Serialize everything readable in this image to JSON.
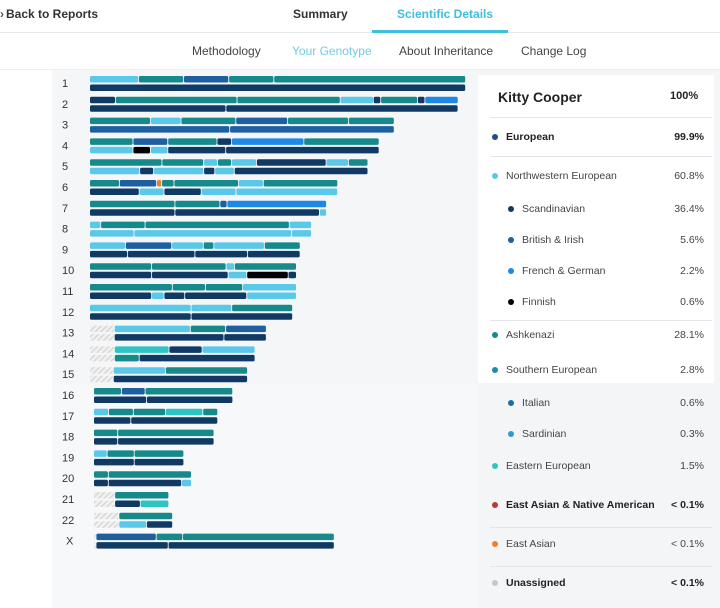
{
  "nav": {
    "back_label": "Back to Reports",
    "tabs": [
      {
        "label": "Summary",
        "active": false
      },
      {
        "label": "Scientific Details",
        "active": true
      }
    ],
    "subtabs": [
      {
        "label": "Methodology",
        "active": false
      },
      {
        "label": "Your Genotype",
        "active": true
      },
      {
        "label": "About Inheritance",
        "active": false
      },
      {
        "label": "Change Log",
        "active": false
      }
    ]
  },
  "colors": {
    "accent": "#3fc0de",
    "european": "#1a4f87",
    "northwestern": "#5ac8e8",
    "scandinavian": "#103a63",
    "british_irish": "#1e5fa0",
    "french_german": "#1e88e5",
    "finnish": "#000000",
    "ashkenazi": "#168a8a",
    "southern": "#1d8aa8",
    "italian": "#1a6fa6",
    "sardinian": "#2d9bd0",
    "eastern": "#2ec4c4",
    "east_asian_native": "#c0392b",
    "east_asian": "#f07f2c",
    "unassigned": "#c8c8c8"
  },
  "profile": {
    "name": "Kitty Cooper",
    "total": "100%"
  },
  "ancestry": [
    {
      "label": "European",
      "pct": "99.9%",
      "level": 0,
      "bold": true,
      "color": "european"
    },
    {
      "label": "Northwestern European",
      "pct": "60.8%",
      "level": 0,
      "bold": false,
      "color": "northwestern"
    },
    {
      "label": "Scandinavian",
      "pct": "36.4%",
      "level": 1,
      "bold": false,
      "color": "scandinavian"
    },
    {
      "label": "British & Irish",
      "pct": "5.6%",
      "level": 1,
      "bold": false,
      "color": "british_irish"
    },
    {
      "label": "French & German",
      "pct": "2.2%",
      "level": 1,
      "bold": false,
      "color": "french_german"
    },
    {
      "label": "Finnish",
      "pct": "0.6%",
      "level": 1,
      "bold": false,
      "color": "finnish"
    },
    {
      "label": "Ashkenazi",
      "pct": "28.1%",
      "level": 0,
      "bold": false,
      "color": "ashkenazi"
    },
    {
      "label": "Southern European",
      "pct": "2.8%",
      "level": 0,
      "bold": false,
      "color": "southern"
    },
    {
      "label": "Italian",
      "pct": "0.6%",
      "level": 1,
      "bold": false,
      "color": "italian"
    },
    {
      "label": "Sardinian",
      "pct": "0.3%",
      "level": 1,
      "bold": false,
      "color": "sardinian"
    },
    {
      "label": "Eastern European",
      "pct": "1.5%",
      "level": 0,
      "bold": false,
      "color": "eastern"
    },
    {
      "label": "East Asian & Native American",
      "pct": "< 0.1%",
      "level": 0,
      "bold": true,
      "color": "east_asian_native"
    },
    {
      "label": "East Asian",
      "pct": "< 0.1%",
      "level": 0,
      "bold": false,
      "color": "east_asian"
    },
    {
      "label": "Unassigned",
      "pct": "< 0.1%",
      "level": 0,
      "bold": true,
      "color": "unassigned"
    }
  ],
  "chromosomes": [
    {
      "label": "1",
      "length": 1.0,
      "top": [
        [
          "northwestern",
          0.13
        ],
        [
          "ashkenazi",
          0.12
        ],
        [
          "british_irish",
          0.12
        ],
        [
          "ashkenazi",
          0.12
        ],
        [
          "ashkenazi",
          0.51
        ]
      ],
      "bottom": [
        [
          "scandinavian",
          1.0
        ]
      ]
    },
    {
      "label": "2",
      "length": 0.98,
      "top": [
        [
          "scandinavian",
          0.07
        ],
        [
          "ashkenazi",
          0.33
        ],
        [
          "ashkenazi",
          0.28
        ],
        [
          "northwestern",
          0.09
        ],
        [
          "scandinavian",
          0.02
        ],
        [
          "ashkenazi",
          0.1
        ],
        [
          "scandinavian",
          0.02
        ],
        [
          "french_german",
          0.09
        ]
      ],
      "bottom": [
        [
          "scandinavian",
          0.37
        ],
        [
          "scandinavian",
          0.63
        ]
      ]
    },
    {
      "label": "3",
      "length": 0.81,
      "top": [
        [
          "ashkenazi",
          0.2
        ],
        [
          "northwestern",
          0.1
        ],
        [
          "ashkenazi",
          0.18
        ],
        [
          "british_irish",
          0.17
        ],
        [
          "ashkenazi",
          0.2
        ],
        [
          "ashkenazi",
          0.15
        ]
      ],
      "bottom": [
        [
          "british_irish",
          0.46
        ],
        [
          "british_irish",
          0.54
        ]
      ]
    },
    {
      "label": "4",
      "length": 0.77,
      "top": [
        [
          "ashkenazi",
          0.15
        ],
        [
          "british_irish",
          0.12
        ],
        [
          "ashkenazi",
          0.17
        ],
        [
          "scandinavian",
          0.05
        ],
        [
          "french_german",
          0.25
        ],
        [
          "ashkenazi",
          0.26
        ]
      ],
      "bottom": [
        [
          "northwestern",
          0.15
        ],
        [
          "finnish",
          0.06
        ],
        [
          "northwestern",
          0.06
        ],
        [
          "scandinavian",
          0.2
        ],
        [
          "scandinavian",
          0.53
        ]
      ]
    },
    {
      "label": "5",
      "length": 0.74,
      "top": [
        [
          "ashkenazi",
          0.26
        ],
        [
          "ashkenazi",
          0.15
        ],
        [
          "northwestern",
          0.05
        ],
        [
          "ashkenazi",
          0.05
        ],
        [
          "northwestern",
          0.09
        ],
        [
          "scandinavian",
          0.25
        ],
        [
          "northwestern",
          0.08
        ],
        [
          "ashkenazi",
          0.07
        ]
      ],
      "bottom": [
        [
          "northwestern",
          0.18
        ],
        [
          "scandinavian",
          0.05
        ],
        [
          "northwestern",
          0.18
        ],
        [
          "scandinavian",
          0.04
        ],
        [
          "northwestern",
          0.07
        ],
        [
          "scandinavian",
          0.48
        ]
      ]
    },
    {
      "label": "6",
      "length": 0.66,
      "top": [
        [
          "ashkenazi",
          0.12
        ],
        [
          "british_irish",
          0.15
        ],
        [
          "east_asian",
          0.02
        ],
        [
          "ashkenazi",
          0.05
        ],
        [
          "ashkenazi",
          0.26
        ],
        [
          "northwestern",
          0.1
        ],
        [
          "ashkenazi",
          0.3
        ]
      ],
      "bottom": [
        [
          "scandinavian",
          0.2
        ],
        [
          "northwestern",
          0.1
        ],
        [
          "scandinavian",
          0.15
        ],
        [
          "northwestern",
          0.14
        ],
        [
          "northwestern",
          0.41
        ]
      ]
    },
    {
      "label": "7",
      "length": 0.63,
      "top": [
        [
          "ashkenazi",
          0.36
        ],
        [
          "ashkenazi",
          0.19
        ],
        [
          "british_irish",
          0.03
        ],
        [
          "french_german",
          0.42
        ]
      ],
      "bottom": [
        [
          "scandinavian",
          0.36
        ],
        [
          "scandinavian",
          0.61
        ],
        [
          "northwestern",
          0.03
        ]
      ]
    },
    {
      "label": "8",
      "length": 0.59,
      "top": [
        [
          "northwestern",
          0.05
        ],
        [
          "ashkenazi",
          0.2
        ],
        [
          "ashkenazi",
          0.65
        ],
        [
          "northwestern",
          0.1
        ]
      ],
      "bottom": [
        [
          "northwestern",
          0.2
        ],
        [
          "northwestern",
          0.71
        ],
        [
          "northwestern",
          0.09
        ]
      ]
    },
    {
      "label": "9",
      "length": 0.56,
      "top": [
        [
          "northwestern",
          0.17
        ],
        [
          "british_irish",
          0.22
        ],
        [
          "northwestern",
          0.15
        ],
        [
          "ashkenazi",
          0.05
        ],
        [
          "northwestern",
          0.24
        ],
        [
          "ashkenazi",
          0.17
        ]
      ],
      "bottom": [
        [
          "scandinavian",
          0.18
        ],
        [
          "scandinavian",
          0.32
        ],
        [
          "scandinavian",
          0.25
        ],
        [
          "scandinavian",
          0.25
        ]
      ]
    },
    {
      "label": "10",
      "length": 0.55,
      "top": [
        [
          "ashkenazi",
          0.3
        ],
        [
          "ashkenazi",
          0.36
        ],
        [
          "northwestern",
          0.04
        ],
        [
          "ashkenazi",
          0.3
        ]
      ],
      "bottom": [
        [
          "scandinavian",
          0.3
        ],
        [
          "scandinavian",
          0.37
        ],
        [
          "northwestern",
          0.09
        ],
        [
          "finnish",
          0.2
        ],
        [
          "scandinavian",
          0.04
        ]
      ]
    },
    {
      "label": "11",
      "length": 0.55,
      "top": [
        [
          "ashkenazi",
          0.4
        ],
        [
          "ashkenazi",
          0.16
        ],
        [
          "ashkenazi",
          0.18
        ],
        [
          "northwestern",
          0.26
        ]
      ],
      "bottom": [
        [
          "scandinavian",
          0.3
        ],
        [
          "northwestern",
          0.06
        ],
        [
          "scandinavian",
          0.1
        ],
        [
          "scandinavian",
          0.3
        ],
        [
          "northwestern",
          0.24
        ]
      ]
    },
    {
      "label": "12",
      "length": 0.54,
      "top": [
        [
          "northwestern",
          0.5
        ],
        [
          "northwestern",
          0.2
        ],
        [
          "ashkenazi",
          0.3
        ]
      ],
      "bottom": [
        [
          "scandinavian",
          0.5
        ],
        [
          "scandinavian",
          0.5
        ]
      ]
    },
    {
      "label": "13",
      "length": 0.47,
      "top": [
        [
          "unassigned",
          0.14
        ],
        [
          "northwestern",
          0.43
        ],
        [
          "ashkenazi",
          0.2
        ],
        [
          "british_irish",
          0.23
        ]
      ],
      "bottom": [
        [
          "unassigned",
          0.14
        ],
        [
          "scandinavian",
          0.62
        ],
        [
          "scandinavian",
          0.24
        ]
      ]
    },
    {
      "label": "14",
      "length": 0.44,
      "top": [
        [
          "unassigned",
          0.15
        ],
        [
          "eastern",
          0.33
        ],
        [
          "scandinavian",
          0.2
        ],
        [
          "northwestern",
          0.32
        ]
      ],
      "bottom": [
        [
          "unassigned",
          0.15
        ],
        [
          "ashkenazi",
          0.15
        ],
        [
          "scandinavian",
          0.7
        ]
      ]
    },
    {
      "label": "15",
      "length": 0.42,
      "top": [
        [
          "unassigned",
          0.15
        ],
        [
          "northwestern",
          0.33
        ],
        [
          "ashkenazi",
          0.52
        ]
      ],
      "bottom": [
        [
          "unassigned",
          0.15
        ],
        [
          "scandinavian",
          0.85
        ]
      ]
    },
    {
      "label": "16",
      "length": 0.37,
      "top": [
        [
          "ashkenazi",
          0.2
        ],
        [
          "british_irish",
          0.17
        ],
        [
          "ashkenazi",
          0.63
        ]
      ],
      "bottom": [
        [
          "scandinavian",
          0.38
        ],
        [
          "scandinavian",
          0.62
        ]
      ]
    },
    {
      "label": "17",
      "length": 0.33,
      "top": [
        [
          "northwestern",
          0.12
        ],
        [
          "ashkenazi",
          0.2
        ],
        [
          "ashkenazi",
          0.26
        ],
        [
          "eastern",
          0.3
        ],
        [
          "ashkenazi",
          0.12
        ]
      ],
      "bottom": [
        [
          "scandinavian",
          0.3
        ],
        [
          "scandinavian",
          0.7
        ]
      ]
    },
    {
      "label": "18",
      "length": 0.32,
      "top": [
        [
          "ashkenazi",
          0.2
        ],
        [
          "ashkenazi",
          0.8
        ]
      ],
      "bottom": [
        [
          "scandinavian",
          0.2
        ],
        [
          "scandinavian",
          0.8
        ]
      ]
    },
    {
      "label": "19",
      "length": 0.24,
      "top": [
        [
          "northwestern",
          0.15
        ],
        [
          "ashkenazi",
          0.3
        ],
        [
          "ashkenazi",
          0.55
        ]
      ],
      "bottom": [
        [
          "scandinavian",
          0.45
        ],
        [
          "scandinavian",
          0.55
        ]
      ]
    },
    {
      "label": "20",
      "length": 0.26,
      "top": [
        [
          "ashkenazi",
          0.15
        ],
        [
          "ashkenazi",
          0.85
        ]
      ],
      "bottom": [
        [
          "scandinavian",
          0.15
        ],
        [
          "scandinavian",
          0.75
        ],
        [
          "northwestern",
          0.1
        ]
      ]
    },
    {
      "label": "21",
      "length": 0.2,
      "top": [
        [
          "unassigned",
          0.28
        ],
        [
          "ashkenazi",
          0.72
        ]
      ],
      "bottom": [
        [
          "unassigned",
          0.28
        ],
        [
          "scandinavian",
          0.34
        ],
        [
          "eastern",
          0.38
        ]
      ]
    },
    {
      "label": "22",
      "length": 0.21,
      "top": [
        [
          "unassigned",
          0.32
        ],
        [
          "ashkenazi",
          0.68
        ]
      ],
      "bottom": [
        [
          "unassigned",
          0.32
        ],
        [
          "northwestern",
          0.35
        ],
        [
          "scandinavian",
          0.33
        ]
      ]
    },
    {
      "label": "X",
      "length": 0.64,
      "top": [
        [
          "unassigned",
          0.01
        ],
        [
          "british_irish",
          0.25
        ],
        [
          "ashkenazi",
          0.11
        ],
        [
          "ashkenazi",
          0.63
        ]
      ],
      "bottom": [
        [
          "unassigned",
          0.01
        ],
        [
          "scandinavian",
          0.3
        ],
        [
          "scandinavian",
          0.69
        ]
      ]
    }
  ]
}
